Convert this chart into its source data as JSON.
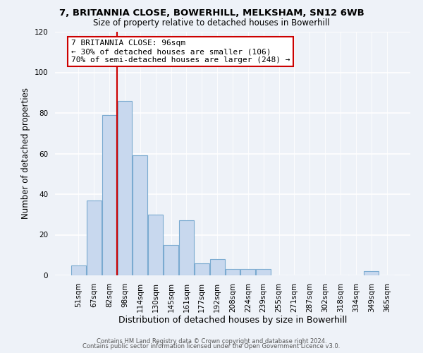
{
  "title1": "7, BRITANNIA CLOSE, BOWERHILL, MELKSHAM, SN12 6WB",
  "title2": "Size of property relative to detached houses in Bowerhill",
  "xlabel": "Distribution of detached houses by size in Bowerhill",
  "ylabel": "Number of detached properties",
  "bin_labels": [
    "51sqm",
    "67sqm",
    "82sqm",
    "98sqm",
    "114sqm",
    "130sqm",
    "145sqm",
    "161sqm",
    "177sqm",
    "192sqm",
    "208sqm",
    "224sqm",
    "239sqm",
    "255sqm",
    "271sqm",
    "287sqm",
    "302sqm",
    "318sqm",
    "334sqm",
    "349sqm",
    "365sqm"
  ],
  "bar_values": [
    5,
    37,
    79,
    86,
    59,
    30,
    15,
    27,
    6,
    8,
    3,
    3,
    3,
    0,
    0,
    0,
    0,
    0,
    0,
    2,
    0
  ],
  "bar_color": "#c8d8ee",
  "bar_edgecolor": "#7aaad0",
  "vline_color": "#cc0000",
  "ylim": [
    0,
    120
  ],
  "yticks": [
    0,
    20,
    40,
    60,
    80,
    100,
    120
  ],
  "annotation_line1": "7 BRITANNIA CLOSE: 96sqm",
  "annotation_line2": "← 30% of detached houses are smaller (106)",
  "annotation_line3": "70% of semi-detached houses are larger (248) →",
  "footer1": "Contains HM Land Registry data © Crown copyright and database right 2024.",
  "footer2": "Contains public sector information licensed under the Open Government Licence v3.0.",
  "background_color": "#eef2f8",
  "plot_background": "#eef2f8"
}
